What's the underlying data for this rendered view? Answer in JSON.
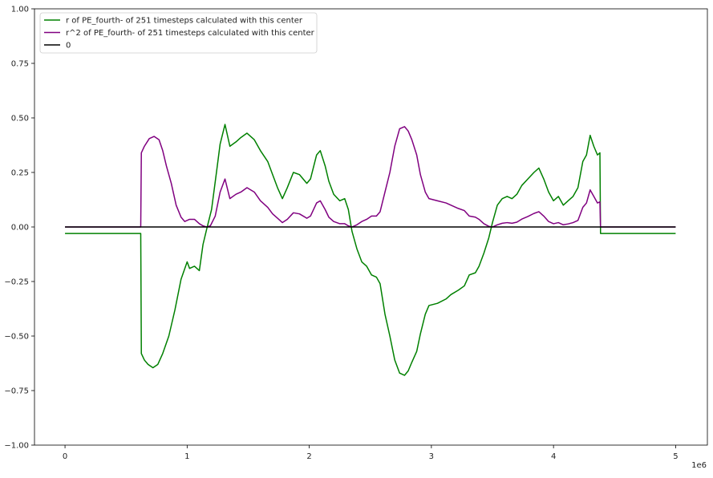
{
  "chart_data": {
    "type": "line",
    "title": "",
    "xlabel": "",
    "ylabel": "",
    "xlim": [
      -250000,
      5260000
    ],
    "ylim": [
      -1.0,
      1.0
    ],
    "x_ticks": [
      0,
      1000000,
      2000000,
      3000000,
      4000000,
      5000000
    ],
    "x_tick_labels": [
      "0",
      "1",
      "2",
      "3",
      "4",
      "5"
    ],
    "x_offset_label": "1e6",
    "y_ticks": [
      -1.0,
      -0.75,
      -0.5,
      -0.25,
      0.0,
      0.25,
      0.5,
      0.75,
      1.0
    ],
    "y_tick_labels": [
      "−1.00",
      "−0.75",
      "−0.50",
      "−0.25",
      "0.00",
      "0.25",
      "0.50",
      "0.75",
      "1.00"
    ],
    "grid": false,
    "legend_position": "upper-left",
    "series": [
      {
        "name": "r of PE_fourth- of 251 timesteps calculated with this center",
        "color": "#008000",
        "points": [
          [
            0,
            -0.03
          ],
          [
            620000,
            -0.03
          ],
          [
            625000,
            -0.58
          ],
          [
            650000,
            -0.61
          ],
          [
            680000,
            -0.63
          ],
          [
            720000,
            -0.645
          ],
          [
            760000,
            -0.63
          ],
          [
            800000,
            -0.58
          ],
          [
            850000,
            -0.5
          ],
          [
            900000,
            -0.38
          ],
          [
            950000,
            -0.24
          ],
          [
            1000000,
            -0.16
          ],
          [
            1020000,
            -0.19
          ],
          [
            1060000,
            -0.18
          ],
          [
            1100000,
            -0.2
          ],
          [
            1130000,
            -0.08
          ],
          [
            1160000,
            -0.01
          ],
          [
            1200000,
            0.08
          ],
          [
            1240000,
            0.25
          ],
          [
            1270000,
            0.38
          ],
          [
            1310000,
            0.47
          ],
          [
            1350000,
            0.37
          ],
          [
            1400000,
            0.39
          ],
          [
            1440000,
            0.41
          ],
          [
            1490000,
            0.43
          ],
          [
            1550000,
            0.4
          ],
          [
            1600000,
            0.35
          ],
          [
            1660000,
            0.3
          ],
          [
            1700000,
            0.24
          ],
          [
            1740000,
            0.18
          ],
          [
            1780000,
            0.13
          ],
          [
            1820000,
            0.18
          ],
          [
            1870000,
            0.25
          ],
          [
            1920000,
            0.24
          ],
          [
            1980000,
            0.2
          ],
          [
            2010000,
            0.22
          ],
          [
            2060000,
            0.33
          ],
          [
            2090000,
            0.35
          ],
          [
            2130000,
            0.28
          ],
          [
            2160000,
            0.21
          ],
          [
            2200000,
            0.15
          ],
          [
            2250000,
            0.12
          ],
          [
            2290000,
            0.13
          ],
          [
            2320000,
            0.08
          ],
          [
            2350000,
            -0.02
          ],
          [
            2390000,
            -0.1
          ],
          [
            2430000,
            -0.16
          ],
          [
            2470000,
            -0.18
          ],
          [
            2510000,
            -0.22
          ],
          [
            2550000,
            -0.23
          ],
          [
            2580000,
            -0.26
          ],
          [
            2620000,
            -0.4
          ],
          [
            2660000,
            -0.5
          ],
          [
            2700000,
            -0.61
          ],
          [
            2740000,
            -0.67
          ],
          [
            2780000,
            -0.68
          ],
          [
            2810000,
            -0.66
          ],
          [
            2840000,
            -0.62
          ],
          [
            2880000,
            -0.57
          ],
          [
            2910000,
            -0.49
          ],
          [
            2950000,
            -0.4
          ],
          [
            2980000,
            -0.36
          ],
          [
            3050000,
            -0.35
          ],
          [
            3120000,
            -0.33
          ],
          [
            3160000,
            -0.31
          ],
          [
            3220000,
            -0.29
          ],
          [
            3270000,
            -0.27
          ],
          [
            3310000,
            -0.22
          ],
          [
            3360000,
            -0.21
          ],
          [
            3390000,
            -0.18
          ],
          [
            3430000,
            -0.12
          ],
          [
            3470000,
            -0.05
          ],
          [
            3500000,
            0.02
          ],
          [
            3540000,
            0.1
          ],
          [
            3580000,
            0.13
          ],
          [
            3620000,
            0.14
          ],
          [
            3660000,
            0.13
          ],
          [
            3700000,
            0.15
          ],
          [
            3740000,
            0.19
          ],
          [
            3790000,
            0.22
          ],
          [
            3840000,
            0.25
          ],
          [
            3880000,
            0.27
          ],
          [
            3920000,
            0.22
          ],
          [
            3960000,
            0.16
          ],
          [
            4000000,
            0.12
          ],
          [
            4040000,
            0.14
          ],
          [
            4080000,
            0.1
          ],
          [
            4120000,
            0.12
          ],
          [
            4160000,
            0.14
          ],
          [
            4200000,
            0.18
          ],
          [
            4240000,
            0.3
          ],
          [
            4270000,
            0.33
          ],
          [
            4300000,
            0.42
          ],
          [
            4330000,
            0.37
          ],
          [
            4360000,
            0.33
          ],
          [
            4380000,
            0.34
          ],
          [
            4385000,
            -0.03
          ],
          [
            5000000,
            -0.03
          ]
        ]
      },
      {
        "name": "r^2 of PE_fourth- of 251 timesteps calculated with this center",
        "color": "#800080",
        "points": [
          [
            0,
            0.0
          ],
          [
            620000,
            0.0
          ],
          [
            625000,
            0.34
          ],
          [
            650000,
            0.37
          ],
          [
            690000,
            0.405
          ],
          [
            730000,
            0.415
          ],
          [
            770000,
            0.4
          ],
          [
            800000,
            0.35
          ],
          [
            830000,
            0.28
          ],
          [
            870000,
            0.2
          ],
          [
            910000,
            0.1
          ],
          [
            950000,
            0.045
          ],
          [
            980000,
            0.025
          ],
          [
            1020000,
            0.035
          ],
          [
            1060000,
            0.035
          ],
          [
            1100000,
            0.015
          ],
          [
            1130000,
            0.005
          ],
          [
            1160000,
            0.0
          ],
          [
            1190000,
            0.005
          ],
          [
            1230000,
            0.05
          ],
          [
            1270000,
            0.16
          ],
          [
            1310000,
            0.22
          ],
          [
            1350000,
            0.13
          ],
          [
            1400000,
            0.15
          ],
          [
            1440000,
            0.16
          ],
          [
            1490000,
            0.18
          ],
          [
            1550000,
            0.16
          ],
          [
            1600000,
            0.12
          ],
          [
            1660000,
            0.09
          ],
          [
            1700000,
            0.06
          ],
          [
            1740000,
            0.04
          ],
          [
            1780000,
            0.02
          ],
          [
            1820000,
            0.035
          ],
          [
            1870000,
            0.065
          ],
          [
            1920000,
            0.06
          ],
          [
            1980000,
            0.04
          ],
          [
            2010000,
            0.05
          ],
          [
            2060000,
            0.11
          ],
          [
            2090000,
            0.12
          ],
          [
            2130000,
            0.08
          ],
          [
            2160000,
            0.045
          ],
          [
            2200000,
            0.025
          ],
          [
            2250000,
            0.015
          ],
          [
            2290000,
            0.015
          ],
          [
            2320000,
            0.005
          ],
          [
            2350000,
            0.0
          ],
          [
            2390000,
            0.01
          ],
          [
            2430000,
            0.025
          ],
          [
            2470000,
            0.035
          ],
          [
            2510000,
            0.05
          ],
          [
            2550000,
            0.05
          ],
          [
            2580000,
            0.07
          ],
          [
            2620000,
            0.16
          ],
          [
            2660000,
            0.25
          ],
          [
            2700000,
            0.37
          ],
          [
            2740000,
            0.45
          ],
          [
            2780000,
            0.46
          ],
          [
            2810000,
            0.44
          ],
          [
            2840000,
            0.4
          ],
          [
            2880000,
            0.33
          ],
          [
            2910000,
            0.24
          ],
          [
            2950000,
            0.16
          ],
          [
            2980000,
            0.13
          ],
          [
            3050000,
            0.12
          ],
          [
            3120000,
            0.11
          ],
          [
            3160000,
            0.1
          ],
          [
            3220000,
            0.085
          ],
          [
            3270000,
            0.075
          ],
          [
            3310000,
            0.05
          ],
          [
            3360000,
            0.045
          ],
          [
            3390000,
            0.035
          ],
          [
            3430000,
            0.015
          ],
          [
            3470000,
            0.003
          ],
          [
            3500000,
            0.0
          ],
          [
            3540000,
            0.01
          ],
          [
            3580000,
            0.017
          ],
          [
            3620000,
            0.02
          ],
          [
            3660000,
            0.017
          ],
          [
            3700000,
            0.022
          ],
          [
            3740000,
            0.036
          ],
          [
            3790000,
            0.048
          ],
          [
            3840000,
            0.062
          ],
          [
            3880000,
            0.07
          ],
          [
            3920000,
            0.05
          ],
          [
            3960000,
            0.025
          ],
          [
            4000000,
            0.015
          ],
          [
            4040000,
            0.02
          ],
          [
            4080000,
            0.01
          ],
          [
            4120000,
            0.014
          ],
          [
            4160000,
            0.02
          ],
          [
            4200000,
            0.03
          ],
          [
            4240000,
            0.09
          ],
          [
            4270000,
            0.11
          ],
          [
            4300000,
            0.17
          ],
          [
            4330000,
            0.14
          ],
          [
            4360000,
            0.11
          ],
          [
            4380000,
            0.115
          ],
          [
            4385000,
            0.0
          ],
          [
            5000000,
            0.0
          ]
        ]
      },
      {
        "name": "0",
        "color": "#000000",
        "points": [
          [
            0,
            0.0
          ],
          [
            5000000,
            0.0
          ]
        ]
      }
    ]
  }
}
